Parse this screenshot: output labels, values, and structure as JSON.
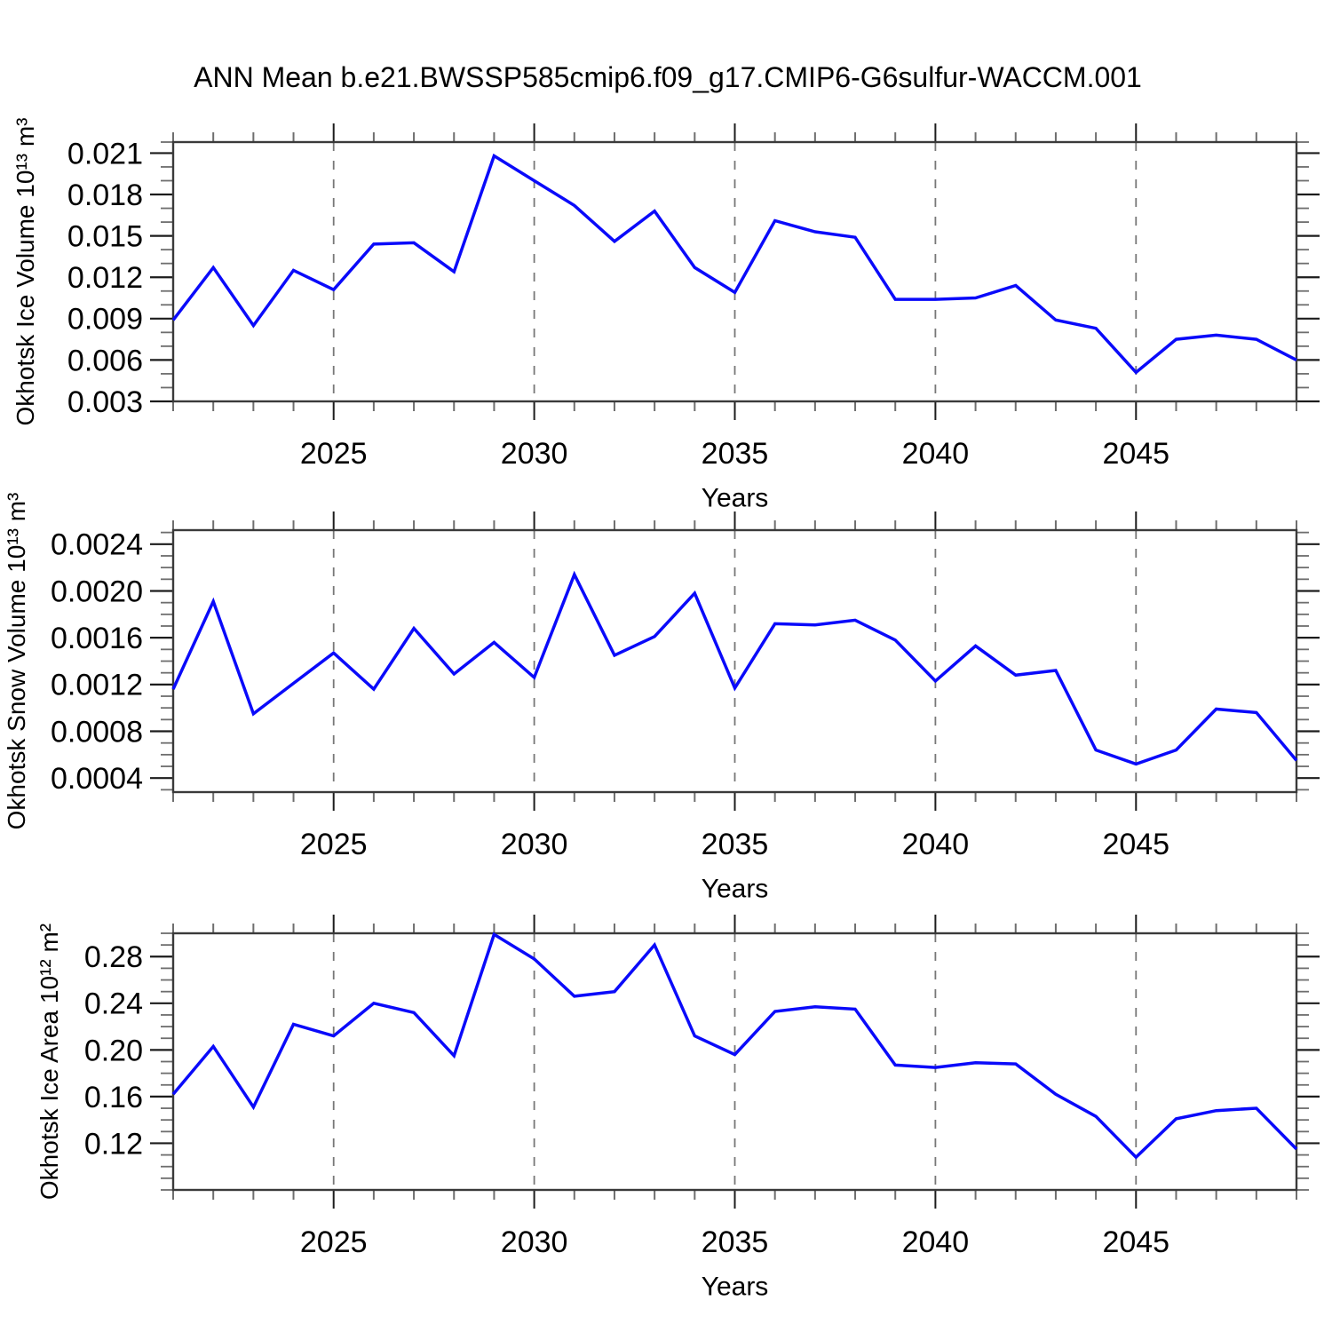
{
  "title": "ANN Mean b.e21.BWSSP585cmip6.f09_g17.CMIP6-G6sulfur-WACCM.001",
  "style": {
    "line_color": "#0a0afa",
    "grid_color": "#777777",
    "frame_color": "#3a3a3a",
    "major_tick_color": "#1c1c1c",
    "minor_tick_color": "#6e6e6e",
    "text_color": "#000000"
  },
  "chart_data": [
    {
      "id": "ice-volume",
      "type": "line",
      "ylabel": "Okhotsk Ice Volume 10¹³ m³",
      "xlabel": "Years",
      "x": [
        2021,
        2022,
        2023,
        2024,
        2025,
        2026,
        2027,
        2028,
        2029,
        2030,
        2031,
        2032,
        2033,
        2034,
        2035,
        2036,
        2037,
        2038,
        2039,
        2040,
        2041,
        2042,
        2043,
        2044,
        2045,
        2046,
        2047,
        2048,
        2049
      ],
      "values": [
        0.0089,
        0.0127,
        0.0085,
        0.0125,
        0.0111,
        0.0144,
        0.0145,
        0.0124,
        0.0208,
        0.019,
        0.0172,
        0.0146,
        0.0168,
        0.0127,
        0.0109,
        0.0161,
        0.0153,
        0.0149,
        0.0104,
        0.0104,
        0.0105,
        0.0114,
        0.0089,
        0.0083,
        0.0051,
        0.0075,
        0.0078,
        0.0075,
        0.006
      ],
      "xlim": [
        2021,
        2049
      ],
      "ylim": [
        0.003,
        0.0218
      ],
      "y_major_ticks": [
        0.021,
        0.018,
        0.015,
        0.012,
        0.009,
        0.006,
        0.003
      ],
      "y_tick_labels": [
        "0.021",
        "0.018",
        "0.015",
        "0.012",
        "0.009",
        "0.006",
        "0.003"
      ],
      "y_minor_step": 0.001,
      "x_major_ticks": [
        2025,
        2030,
        2035,
        2040,
        2045
      ],
      "x_tick_labels": [
        "2025",
        "2030",
        "2035",
        "2040",
        "2045"
      ],
      "x_minor_step": 1,
      "grid": "vertical-dashed",
      "legend": "none"
    },
    {
      "id": "snow-volume",
      "type": "line",
      "ylabel": "Okhotsk Snow Volume 10¹³ m³",
      "xlabel": "Years",
      "x": [
        2021,
        2022,
        2023,
        2024,
        2025,
        2026,
        2027,
        2028,
        2029,
        2030,
        2031,
        2032,
        2033,
        2034,
        2035,
        2036,
        2037,
        2038,
        2039,
        2040,
        2041,
        2042,
        2043,
        2044,
        2045,
        2046,
        2047,
        2048,
        2049
      ],
      "values": [
        0.00116,
        0.00191,
        0.00095,
        0.00121,
        0.00147,
        0.00116,
        0.00168,
        0.00129,
        0.00156,
        0.00126,
        0.00214,
        0.00145,
        0.00161,
        0.00198,
        0.00117,
        0.00172,
        0.00171,
        0.00175,
        0.00158,
        0.00123,
        0.00153,
        0.00128,
        0.00132,
        0.00064,
        0.00052,
        0.00064,
        0.00099,
        0.00096,
        0.00055
      ],
      "xlim": [
        2021,
        2049
      ],
      "ylim": [
        0.00028,
        0.00252
      ],
      "y_major_ticks": [
        0.0024,
        0.002,
        0.0016,
        0.0012,
        0.0008,
        0.0004
      ],
      "y_tick_labels": [
        "0.0024",
        "0.0020",
        "0.0016",
        "0.0012",
        "0.0008",
        "0.0004"
      ],
      "y_minor_step": 0.0001,
      "x_major_ticks": [
        2025,
        2030,
        2035,
        2040,
        2045
      ],
      "x_tick_labels": [
        "2025",
        "2030",
        "2035",
        "2040",
        "2045"
      ],
      "x_minor_step": 1,
      "grid": "vertical-dashed",
      "legend": "none"
    },
    {
      "id": "ice-area",
      "type": "line",
      "ylabel": "Okhotsk Ice Area 10¹² m²",
      "xlabel": "Years",
      "x": [
        2021,
        2022,
        2023,
        2024,
        2025,
        2026,
        2027,
        2028,
        2029,
        2030,
        2031,
        2032,
        2033,
        2034,
        2035,
        2036,
        2037,
        2038,
        2039,
        2040,
        2041,
        2042,
        2043,
        2044,
        2045,
        2046,
        2047,
        2048,
        2049
      ],
      "values": [
        0.162,
        0.203,
        0.151,
        0.222,
        0.212,
        0.24,
        0.232,
        0.195,
        0.299,
        0.278,
        0.246,
        0.25,
        0.29,
        0.212,
        0.196,
        0.233,
        0.237,
        0.235,
        0.187,
        0.185,
        0.189,
        0.188,
        0.162,
        0.143,
        0.108,
        0.141,
        0.148,
        0.15,
        0.115
      ],
      "xlim": [
        2021,
        2049
      ],
      "ylim": [
        0.08,
        0.3
      ],
      "y_major_ticks": [
        0.28,
        0.24,
        0.2,
        0.16,
        0.12
      ],
      "y_tick_labels": [
        "0.28",
        "0.24",
        "0.20",
        "0.16",
        "0.12"
      ],
      "y_minor_step": 0.01,
      "x_major_ticks": [
        2025,
        2030,
        2035,
        2040,
        2045
      ],
      "x_tick_labels": [
        "2025",
        "2030",
        "2035",
        "2040",
        "2045"
      ],
      "x_minor_step": 1,
      "grid": "vertical-dashed",
      "legend": "none"
    }
  ]
}
